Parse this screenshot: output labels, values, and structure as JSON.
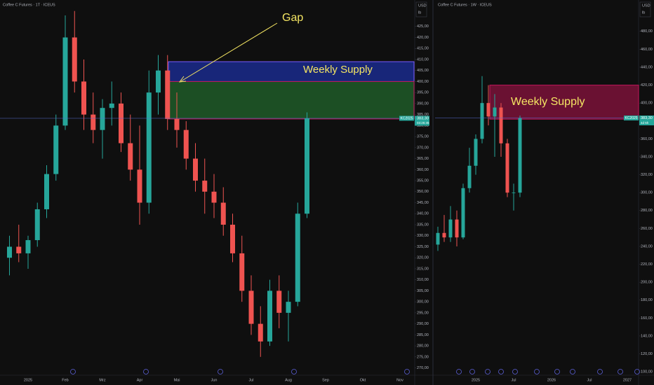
{
  "chart_data": [
    {
      "type": "candlestick",
      "title": "Coffee C Futures · 1T · ICEUS",
      "currency": "USD",
      "unit": "lb",
      "categories": [
        null,
        null,
        "2025",
        null,
        null,
        null,
        "Feb",
        null,
        null,
        null,
        "Mrz",
        null,
        null,
        null,
        "Apr",
        null,
        null,
        null,
        "Mai",
        null,
        null,
        null,
        "Jun",
        null,
        null,
        null,
        "Jul",
        null,
        null,
        null,
        "Aug",
        null,
        null,
        null,
        "Sep",
        null,
        null,
        null,
        "Okt",
        null,
        null,
        null,
        "Nov",
        null
      ],
      "open": [
        320,
        325,
        322,
        328,
        342,
        358,
        380,
        420,
        400,
        385,
        378,
        388,
        390,
        372,
        360,
        345,
        395,
        405,
        383,
        378,
        365,
        355,
        350,
        345,
        335,
        322,
        305,
        290,
        282,
        305,
        295,
        300,
        340,
        null,
        null,
        null,
        null,
        null,
        null,
        null,
        null,
        null,
        null,
        null
      ],
      "high": [
        330,
        335,
        330,
        345,
        362,
        385,
        430,
        432,
        410,
        395,
        392,
        400,
        395,
        385,
        380,
        405,
        412,
        412,
        395,
        382,
        372,
        365,
        358,
        352,
        340,
        330,
        312,
        298,
        310,
        312,
        305,
        345,
        386,
        null,
        null,
        null,
        null,
        null,
        null,
        null,
        null,
        null,
        null,
        null
      ],
      "low": [
        312,
        318,
        315,
        325,
        338,
        355,
        378,
        395,
        378,
        372,
        365,
        380,
        368,
        355,
        335,
        340,
        385,
        378,
        370,
        360,
        350,
        340,
        338,
        330,
        318,
        300,
        285,
        275,
        280,
        288,
        282,
        298,
        338,
        null,
        null,
        null,
        null,
        null,
        null,
        null,
        null,
        null,
        null,
        null
      ],
      "close": [
        325,
        322,
        328,
        342,
        358,
        380,
        420,
        400,
        385,
        378,
        388,
        390,
        372,
        360,
        345,
        395,
        405,
        383,
        378,
        365,
        355,
        350,
        345,
        335,
        322,
        305,
        290,
        282,
        305,
        295,
        300,
        340,
        383.3,
        null,
        null,
        null,
        null,
        null,
        null,
        null,
        null,
        null,
        null,
        null
      ],
      "up_color": "#26a69a",
      "down_color": "#ef5350",
      "ylim": [
        267,
        437
      ],
      "yticks": [
        {
          "value": 270,
          "label": "270,00"
        },
        {
          "value": 275,
          "label": "275,00"
        },
        {
          "value": 280,
          "label": "280,00"
        },
        {
          "value": 285,
          "label": "285,00"
        },
        {
          "value": 290,
          "label": "290,00"
        },
        {
          "value": 295,
          "label": "295,00"
        },
        {
          "value": 300,
          "label": "300,00"
        },
        {
          "value": 305,
          "label": "305,00"
        },
        {
          "value": 310,
          "label": "310,00"
        },
        {
          "value": 315,
          "label": "315,00"
        },
        {
          "value": 320,
          "label": "320,00"
        },
        {
          "value": 325,
          "label": "325,00"
        },
        {
          "value": 330,
          "label": "330,00"
        },
        {
          "value": 335,
          "label": "335,00"
        },
        {
          "value": 340,
          "label": "340,00"
        },
        {
          "value": 345,
          "label": "345,00"
        },
        {
          "value": 350,
          "label": "350,00"
        },
        {
          "value": 355,
          "label": "355,00"
        },
        {
          "value": 360,
          "label": "360,00"
        },
        {
          "value": 365,
          "label": "365,00"
        },
        {
          "value": 370,
          "label": "370,00"
        },
        {
          "value": 375,
          "label": "375,00"
        },
        {
          "value": 380,
          "label": "380,00"
        },
        {
          "value": 385,
          "label": "385,00"
        },
        {
          "value": 390,
          "label": "390,00"
        },
        {
          "value": 395,
          "label": "395,00"
        },
        {
          "value": 400,
          "label": "400,00"
        },
        {
          "value": 405,
          "label": "405,00"
        },
        {
          "value": 410,
          "label": "410,00"
        },
        {
          "value": 415,
          "label": "415,00"
        },
        {
          "value": 420,
          "label": "420,00"
        },
        {
          "value": 425,
          "label": "425,00"
        }
      ],
      "zones": [
        {
          "label": "Weekly Supply",
          "top": 409,
          "bottom": 400,
          "color": "#1a2a8c"
        },
        {
          "top": 400,
          "bottom": 383,
          "color": "#1e5a28"
        }
      ],
      "annotations": [
        {
          "text": "Gap"
        }
      ],
      "symbol_tag": "KC2025",
      "last_price": {
        "value": 383.3,
        "label": "383,30"
      },
      "countdown": "03:26:45"
    },
    {
      "type": "candlestick",
      "title": "Coffee C Futures · 1W · ICEUS",
      "currency": "USD",
      "unit": "lb",
      "categories": [
        null,
        null,
        null,
        null,
        null,
        null,
        "2025",
        null,
        null,
        null,
        null,
        null,
        "Jul",
        null,
        null,
        null,
        null,
        null,
        "2026",
        null,
        null,
        null,
        null,
        null,
        "Jul",
        null,
        null,
        null,
        null,
        null,
        "2027"
      ],
      "open": [
        242,
        255,
        250,
        270,
        250,
        305,
        330,
        360,
        400,
        385,
        395,
        355,
        300,
        300,
        null,
        null,
        null,
        null,
        null,
        null,
        null,
        null,
        null,
        null,
        null,
        null,
        null,
        null,
        null,
        null,
        null
      ],
      "high": [
        262,
        275,
        285,
        280,
        310,
        350,
        365,
        430,
        420,
        410,
        400,
        360,
        310,
        386,
        null,
        null,
        null,
        null,
        null,
        null,
        null,
        null,
        null,
        null,
        null,
        null,
        null,
        null,
        null,
        null,
        null
      ],
      "low": [
        235,
        245,
        245,
        240,
        248,
        300,
        320,
        355,
        375,
        340,
        340,
        295,
        280,
        295,
        null,
        null,
        null,
        null,
        null,
        null,
        null,
        null,
        null,
        null,
        null,
        null,
        null,
        null,
        null,
        null,
        null
      ],
      "close": [
        255,
        250,
        270,
        250,
        305,
        330,
        360,
        400,
        385,
        395,
        355,
        300,
        300,
        383.3,
        null,
        null,
        null,
        null,
        null,
        null,
        null,
        null,
        null,
        null,
        null,
        null,
        null,
        null,
        null,
        null,
        null
      ],
      "up_color": "#26a69a",
      "down_color": "#ef5350",
      "ylim": [
        97,
        515
      ],
      "yticks": [
        {
          "value": 100,
          "label": "100,00"
        },
        {
          "value": 120,
          "label": "120,00"
        },
        {
          "value": 140,
          "label": "140,00"
        },
        {
          "value": 160,
          "label": "160,00"
        },
        {
          "value": 180,
          "label": "180,00"
        },
        {
          "value": 200,
          "label": "200,00"
        },
        {
          "value": 220,
          "label": "220,00"
        },
        {
          "value": 240,
          "label": "240,00"
        },
        {
          "value": 260,
          "label": "260,00"
        },
        {
          "value": 280,
          "label": "280,00"
        },
        {
          "value": 300,
          "label": "300,00"
        },
        {
          "value": 320,
          "label": "320,00"
        },
        {
          "value": 340,
          "label": "340,00"
        },
        {
          "value": 360,
          "label": "360,00"
        },
        {
          "value": 380,
          "label": "380,00"
        },
        {
          "value": 400,
          "label": "400,00"
        },
        {
          "value": 420,
          "label": "420,00"
        },
        {
          "value": 440,
          "label": "440,00"
        },
        {
          "value": 460,
          "label": "460,00"
        },
        {
          "value": 480,
          "label": "480,00"
        }
      ],
      "zones": [
        {
          "label": "Weekly Supply",
          "top": 420,
          "bottom": 382,
          "color": "#7a1238"
        }
      ],
      "symbol_tag": "KC2025",
      "last_price": {
        "value": 383.3,
        "label": "383,30"
      },
      "countdown": "4d 6h"
    }
  ]
}
